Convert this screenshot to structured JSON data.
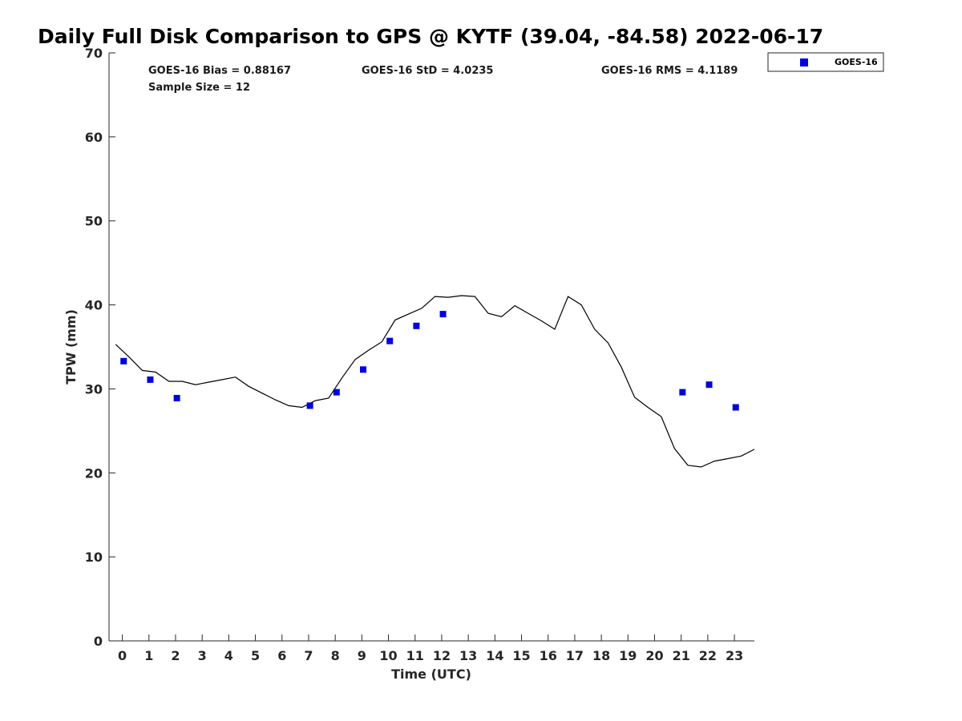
{
  "chart_data": {
    "type": "scatter",
    "title": "Daily Full Disk Comparison to GPS @ KYTF (39.04, -84.58) 2022-06-17",
    "xlabel": "Time (UTC)",
    "ylabel": "TPW (mm)",
    "xlim": [
      -0.5,
      23.75
    ],
    "ylim": [
      0,
      70
    ],
    "x_ticks": [
      0,
      1,
      2,
      3,
      4,
      5,
      6,
      7,
      8,
      9,
      10,
      11,
      12,
      13,
      14,
      15,
      16,
      17,
      18,
      19,
      20,
      21,
      22,
      23
    ],
    "x_tick_labels": [
      "0",
      "1",
      "2",
      "3",
      "4",
      "5",
      "6",
      "7",
      "8",
      "9",
      "10",
      "11",
      "12",
      "13",
      "14",
      "15",
      "16",
      "17",
      "18",
      "19",
      "20",
      "21",
      "22",
      "23"
    ],
    "y_ticks": [
      0,
      10,
      20,
      30,
      40,
      50,
      60,
      70
    ],
    "y_tick_labels": [
      "0",
      "10",
      "20",
      "30",
      "40",
      "50",
      "60",
      "70"
    ],
    "grid": false,
    "legend_position": "outside-top-right",
    "stats": {
      "bias": "GOES-16 Bias = 0.88167",
      "std": "GOES-16 StD = 4.0235",
      "rms": "GOES-16 RMS = 4.1189",
      "sample": "Sample Size = 12"
    },
    "series": [
      {
        "name": "GOES-16",
        "kind": "scatter",
        "marker": "square",
        "color": "#0000dd",
        "points": [
          {
            "x": 0.05,
            "y": 33.3
          },
          {
            "x": 1.05,
            "y": 31.1
          },
          {
            "x": 2.05,
            "y": 28.9
          },
          {
            "x": 7.05,
            "y": 28.0
          },
          {
            "x": 8.05,
            "y": 29.6
          },
          {
            "x": 9.05,
            "y": 32.3
          },
          {
            "x": 10.05,
            "y": 35.7
          },
          {
            "x": 11.05,
            "y": 37.5
          },
          {
            "x": 12.05,
            "y": 38.9
          },
          {
            "x": 21.05,
            "y": 29.6
          },
          {
            "x": 22.05,
            "y": 30.5
          },
          {
            "x": 23.05,
            "y": 27.8
          }
        ]
      },
      {
        "kind": "line",
        "color": "#000000",
        "points": [
          {
            "x": -0.25,
            "y": 35.3
          },
          {
            "x": 0.25,
            "y": 33.8
          },
          {
            "x": 0.75,
            "y": 32.2
          },
          {
            "x": 1.25,
            "y": 32.0
          },
          {
            "x": 1.75,
            "y": 30.9
          },
          {
            "x": 2.25,
            "y": 30.9
          },
          {
            "x": 2.75,
            "y": 30.5
          },
          {
            "x": 3.25,
            "y": 30.8
          },
          {
            "x": 3.75,
            "y": 31.1
          },
          {
            "x": 4.25,
            "y": 31.4
          },
          {
            "x": 4.75,
            "y": 30.3
          },
          {
            "x": 5.25,
            "y": 29.5
          },
          {
            "x": 5.75,
            "y": 28.7
          },
          {
            "x": 6.25,
            "y": 28.0
          },
          {
            "x": 6.75,
            "y": 27.8
          },
          {
            "x": 7.25,
            "y": 28.6
          },
          {
            "x": 7.75,
            "y": 28.9
          },
          {
            "x": 8.25,
            "y": 31.3
          },
          {
            "x": 8.75,
            "y": 33.5
          },
          {
            "x": 9.25,
            "y": 34.6
          },
          {
            "x": 9.75,
            "y": 35.6
          },
          {
            "x": 10.25,
            "y": 38.2
          },
          {
            "x": 10.75,
            "y": 38.9
          },
          {
            "x": 11.25,
            "y": 39.6
          },
          {
            "x": 11.75,
            "y": 41.0
          },
          {
            "x": 12.25,
            "y": 40.9
          },
          {
            "x": 12.75,
            "y": 41.1
          },
          {
            "x": 13.25,
            "y": 41.0
          },
          {
            "x": 13.75,
            "y": 39.0
          },
          {
            "x": 14.25,
            "y": 38.6
          },
          {
            "x": 14.75,
            "y": 39.9
          },
          {
            "x": 15.25,
            "y": 39.0
          },
          {
            "x": 15.75,
            "y": 38.1
          },
          {
            "x": 16.25,
            "y": 37.1
          },
          {
            "x": 16.75,
            "y": 41.0
          },
          {
            "x": 17.25,
            "y": 40.0
          },
          {
            "x": 17.75,
            "y": 37.1
          },
          {
            "x": 18.25,
            "y": 35.5
          },
          {
            "x": 18.75,
            "y": 32.6
          },
          {
            "x": 19.25,
            "y": 29.0
          },
          {
            "x": 19.75,
            "y": 27.8
          },
          {
            "x": 20.25,
            "y": 26.7
          },
          {
            "x": 20.75,
            "y": 22.9
          },
          {
            "x": 21.25,
            "y": 20.9
          },
          {
            "x": 21.75,
            "y": 20.7
          },
          {
            "x": 22.25,
            "y": 21.4
          },
          {
            "x": 22.75,
            "y": 21.7
          },
          {
            "x": 23.25,
            "y": 22.0
          },
          {
            "x": 23.75,
            "y": 22.8
          }
        ]
      }
    ]
  }
}
